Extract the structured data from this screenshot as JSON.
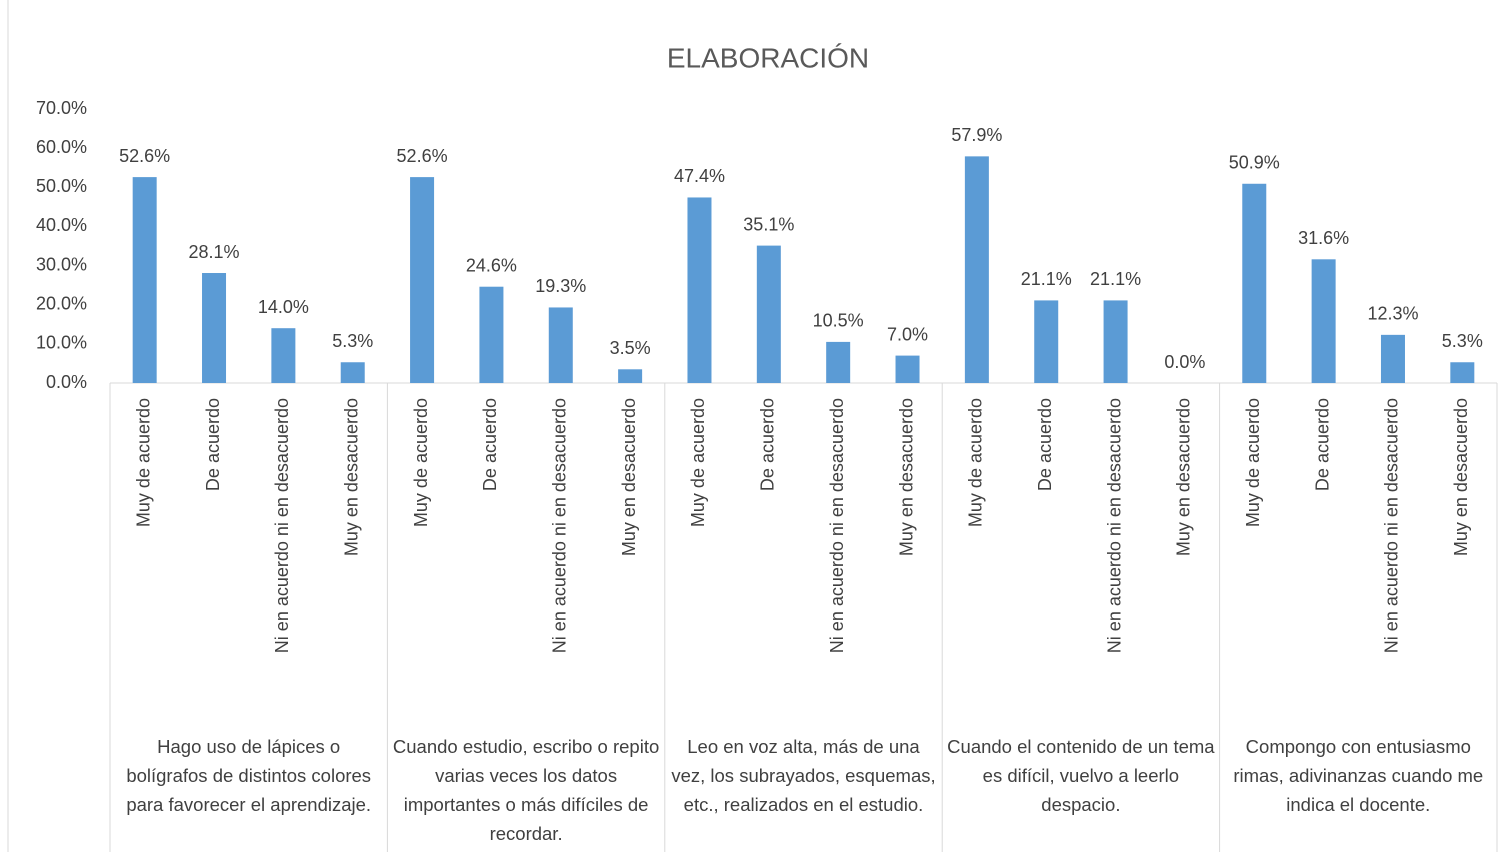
{
  "chart_data": {
    "type": "bar",
    "title": "ELABORACIÓN",
    "categories": [
      "Muy de acuerdo",
      "De acuerdo",
      "Ni en acuerdo ni en desacuerdo",
      "Muy en desacuerdo",
      "Muy de acuerdo",
      "De acuerdo",
      "Ni en acuerdo ni en desacuerdo",
      "Muy en desacuerdo",
      "Muy de acuerdo",
      "De acuerdo",
      "Ni en acuerdo ni en desacuerdo",
      "Muy en desacuerdo",
      "Muy de acuerdo",
      "De acuerdo",
      "Ni en acuerdo ni en desacuerdo",
      "Muy en desacuerdo",
      "Muy de acuerdo",
      "De acuerdo",
      "Ni en acuerdo ni en desacuerdo",
      "Muy en desacuerdo"
    ],
    "groups": [
      "Hago uso de lápices o bolígrafos de distintos colores para favorecer el aprendizaje.",
      "Cuando estudio, escribo o repito varias veces los datos importantes o más difíciles de recordar.",
      "Leo en voz alta, más de una vez, los subrayados, esquemas, etc., realizados en el estudio.",
      "Cuando el contenido de un tema es difícil, vuelvo a leerlo despacio.",
      "Compongo con entusiasmo rimas, adivinanzas cuando me indica el docente."
    ],
    "values": [
      52.6,
      28.1,
      14.0,
      5.3,
      52.6,
      24.6,
      19.3,
      3.5,
      47.4,
      35.1,
      10.5,
      7.0,
      57.9,
      21.1,
      21.1,
      0.0,
      50.9,
      31.6,
      12.3,
      5.3
    ],
    "value_labels": [
      "52.6%",
      "28.1%",
      "14.0%",
      "5.3%",
      "52.6%",
      "24.6%",
      "19.3%",
      "3.5%",
      "47.4%",
      "35.1%",
      "10.5%",
      "7.0%",
      "57.9%",
      "21.1%",
      "21.1%",
      "0.0%",
      "50.9%",
      "31.6%",
      "12.3%",
      "5.3%"
    ],
    "color": "#5b9bd5",
    "ylim": [
      0,
      70
    ],
    "yticks": [
      {
        "value": 0,
        "label": "0.0%"
      },
      {
        "value": 10,
        "label": "10.0%"
      },
      {
        "value": 20,
        "label": "20.0%"
      },
      {
        "value": 30,
        "label": "30.0%"
      },
      {
        "value": 40,
        "label": "40.0%"
      },
      {
        "value": 50,
        "label": "50.0%"
      },
      {
        "value": 60,
        "label": "60.0%"
      },
      {
        "value": 70,
        "label": "70.0%"
      }
    ],
    "grid": false
  }
}
